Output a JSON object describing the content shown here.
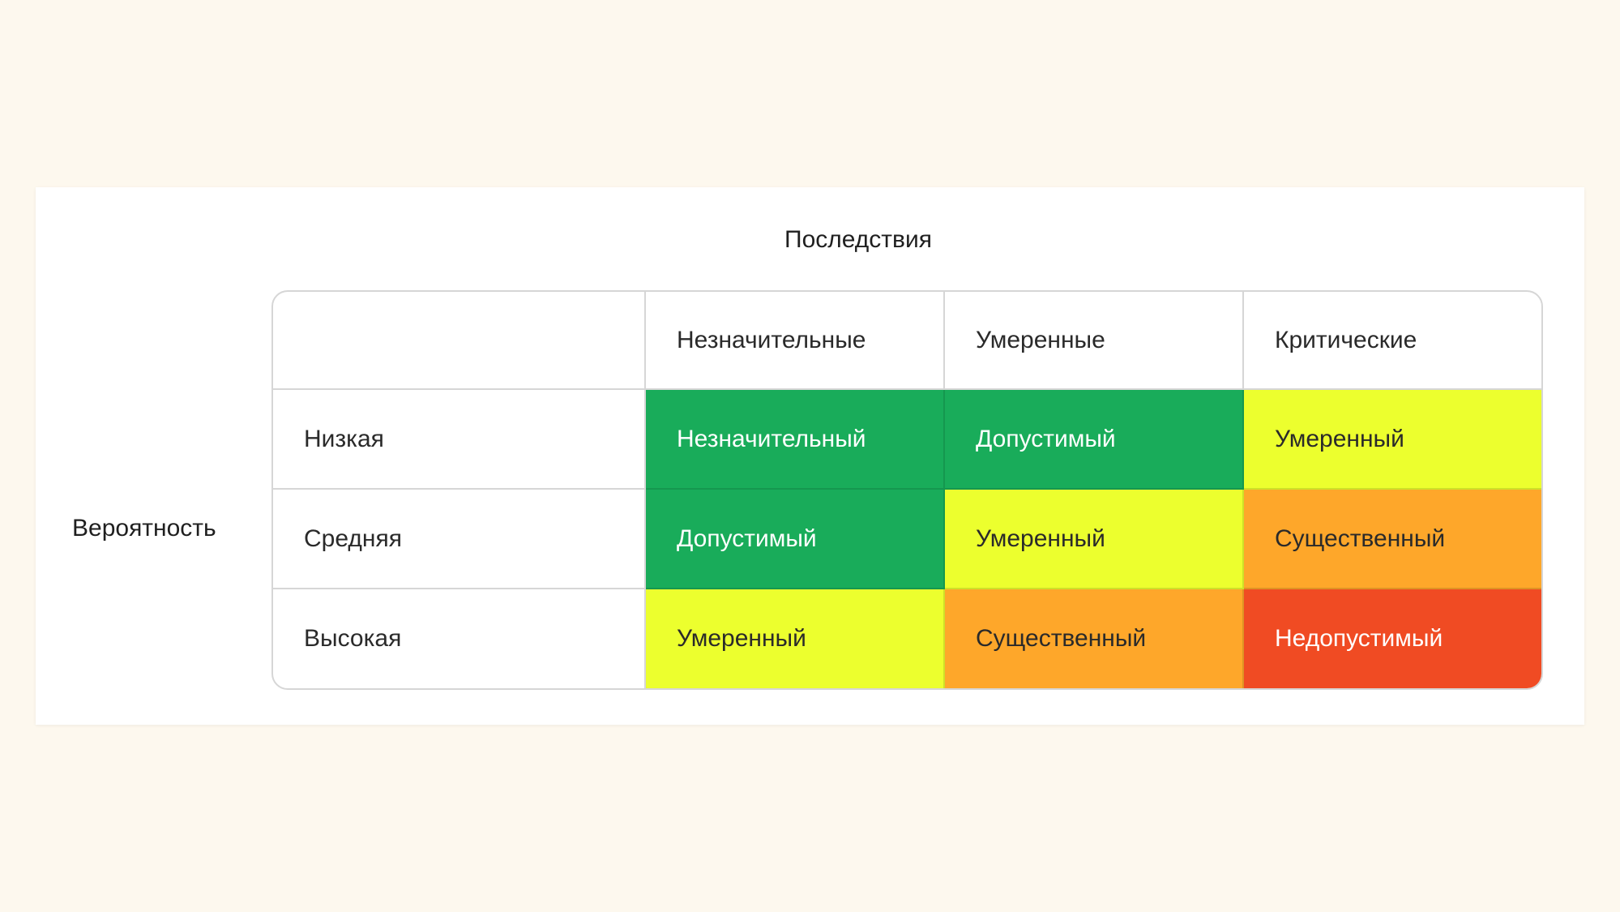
{
  "title": "Последствия",
  "row_axis_label": "Вероятность",
  "columns": [
    "Незначительные",
    "Умеренные",
    "Критические"
  ],
  "rows": [
    {
      "label": "Низкая",
      "cells": [
        {
          "text": "Незначительный",
          "color": "#19ac5a",
          "text_color": "#ffffff"
        },
        {
          "text": "Допустимый",
          "color": "#19ac5a",
          "text_color": "#ffffff"
        },
        {
          "text": "Умеренный",
          "color": "#ecff2e",
          "text_color": "#2a2a2a"
        }
      ]
    },
    {
      "label": "Средняя",
      "cells": [
        {
          "text": "Допустимый",
          "color": "#19ac5a",
          "text_color": "#ffffff"
        },
        {
          "text": "Умеренный",
          "color": "#ecff2e",
          "text_color": "#2a2a2a"
        },
        {
          "text": "Существенный",
          "color": "#fea72a",
          "text_color": "#2a2a2a"
        }
      ]
    },
    {
      "label": "Высокая",
      "cells": [
        {
          "text": "Умеренный",
          "color": "#ecff2e",
          "text_color": "#2a2a2a"
        },
        {
          "text": "Существенный",
          "color": "#fea72a",
          "text_color": "#2a2a2a"
        },
        {
          "text": "Недопустимый",
          "color": "#f04b23",
          "text_color": "#ffffff"
        }
      ]
    }
  ]
}
